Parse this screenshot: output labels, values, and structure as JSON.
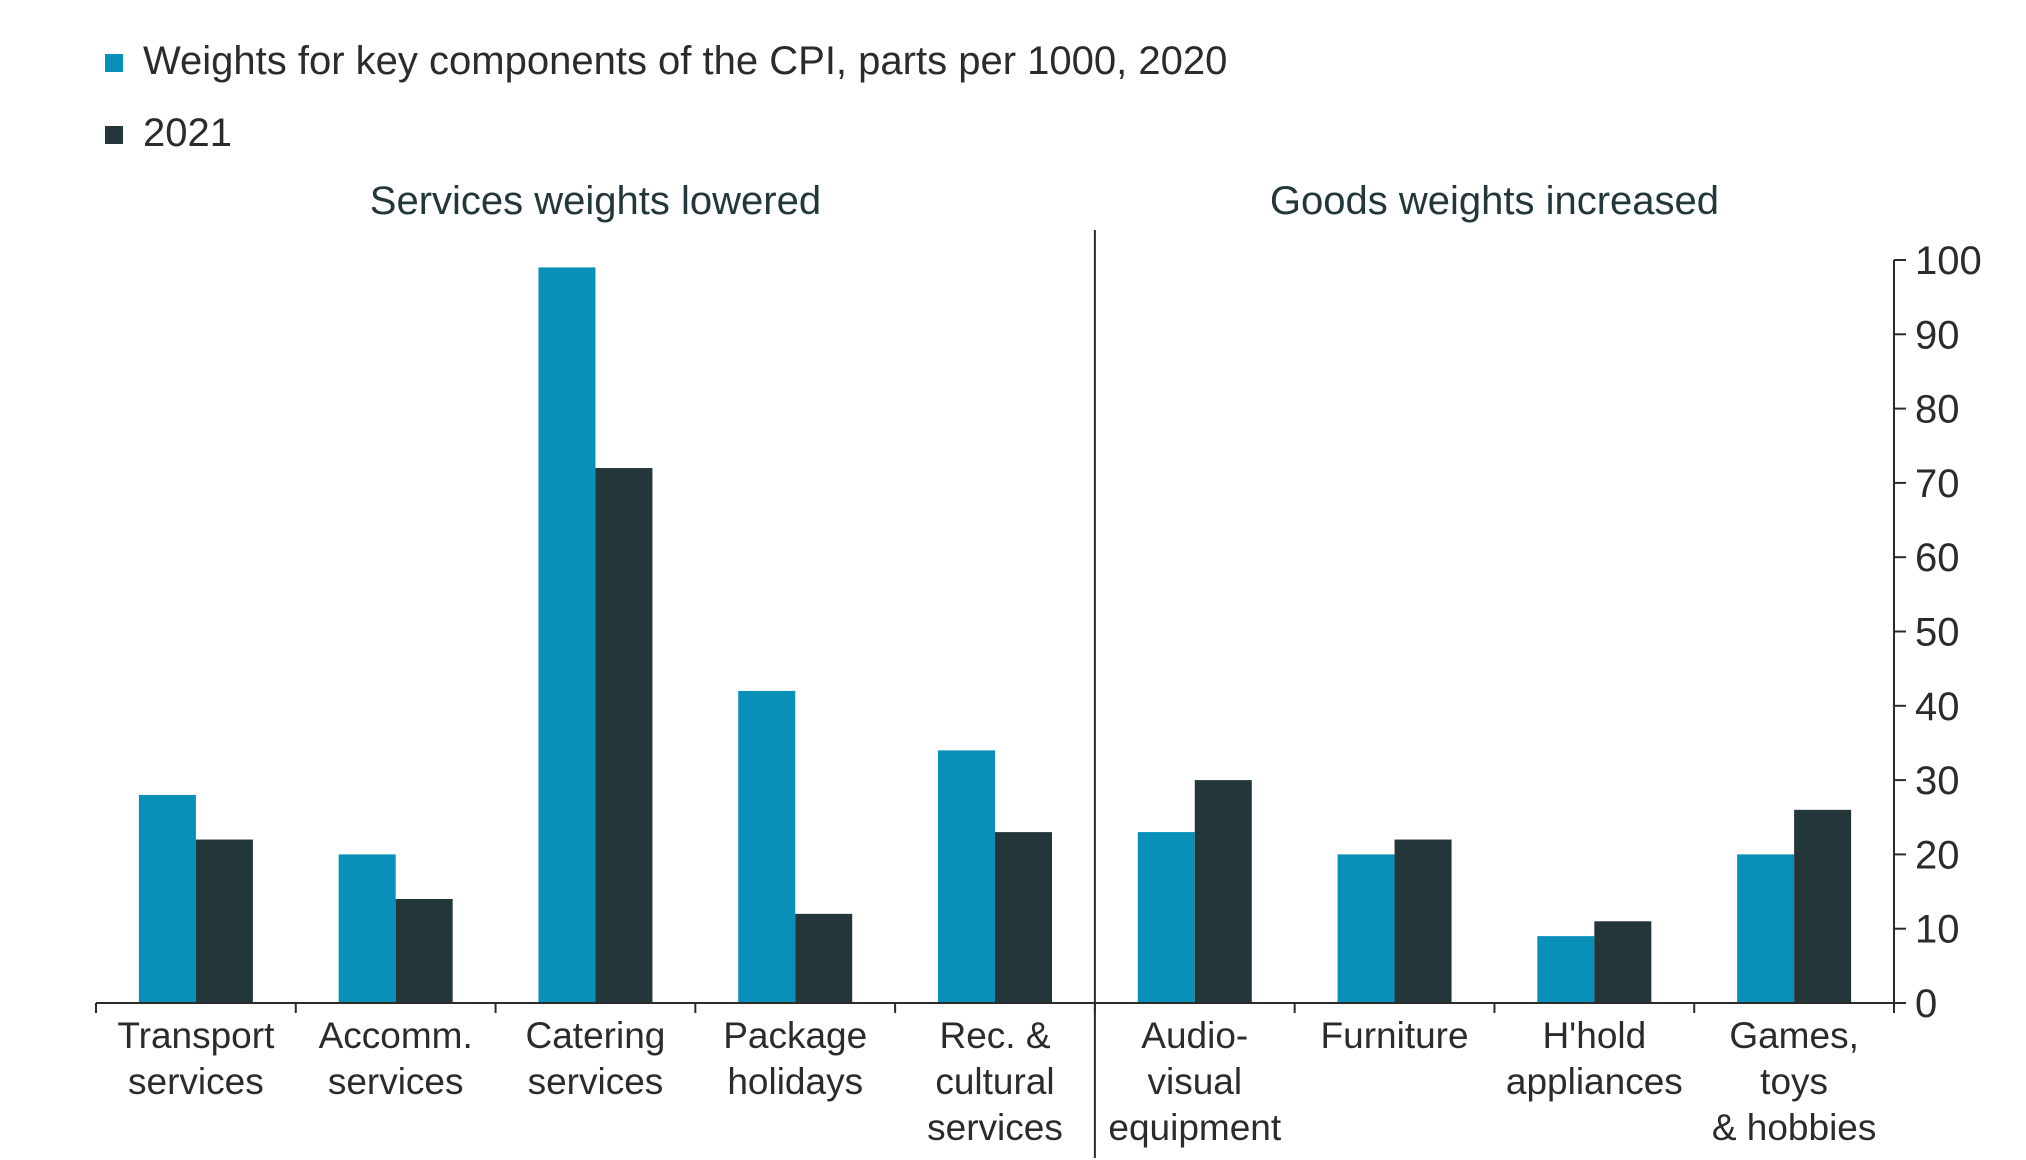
{
  "chart_data": {
    "type": "bar",
    "categories": [
      "Transport\nservices",
      "Accomm.\nservices",
      "Catering\nservices",
      "Package\nholidays",
      "Rec. &\ncultural\nservices",
      "Audio-\nvisual\nequipment",
      "Furniture",
      "H'hold\nappliances",
      "Games,\ntoys\n& hobbies"
    ],
    "series": [
      {
        "name": "Weights for key components of the CPI, parts per 1000, 2020",
        "color": "#0890B8",
        "values": [
          28,
          20,
          99,
          42,
          34,
          23,
          20,
          9,
          20
        ]
      },
      {
        "name": "2021",
        "color": "#23373B",
        "values": [
          22,
          14,
          72,
          12,
          23,
          30,
          22,
          11,
          26
        ]
      }
    ],
    "groups": [
      {
        "label": "Services weights lowered",
        "categories": 5
      },
      {
        "label": "Goods weights increased",
        "categories": 4
      }
    ],
    "yaxis": {
      "side": "right",
      "ylim": [
        0,
        100
      ],
      "ticks": [
        0,
        10,
        20,
        30,
        40,
        50,
        60,
        70,
        80,
        90,
        100
      ]
    },
    "legend_position": "top-left",
    "grid": false,
    "title": "",
    "xlabel": "",
    "ylabel": ""
  }
}
